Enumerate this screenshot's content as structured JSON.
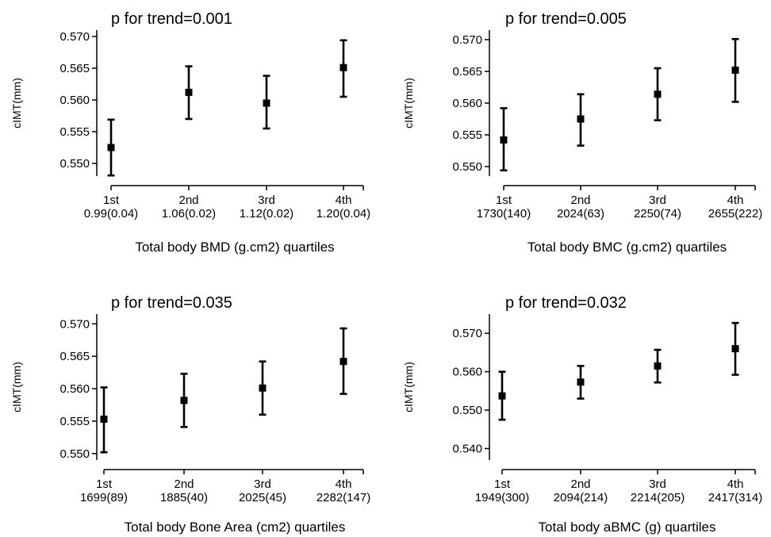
{
  "chart_data": [
    {
      "type": "scatter",
      "title": "p for trend=0.001",
      "ylabel": "cIMT(mm)",
      "xlabel": "Total body BMD (g.cm2) quartiles",
      "categories": [
        "1st",
        "2nd",
        "3rd",
        "4th"
      ],
      "category_sublabels": [
        "0.99(0.04)",
        "1.06(0.02)",
        "1.12(0.02)",
        "1.20(0.04)"
      ],
      "ylim": [
        0.548,
        0.571
      ],
      "yticks": [
        "0.550",
        "0.555",
        "0.560",
        "0.565",
        "0.570"
      ],
      "series": [
        {
          "values": [
            0.5525,
            0.5612,
            0.5595,
            0.5651
          ],
          "lower": [
            0.5481,
            0.557,
            0.5555,
            0.5605
          ],
          "upper": [
            0.5569,
            0.5653,
            0.5638,
            0.5694
          ]
        }
      ]
    },
    {
      "type": "scatter",
      "title": "p for trend=0.005",
      "ylabel": "cIMT(mm)",
      "xlabel": "Total body BMC (g.cm2) quartiles",
      "categories": [
        "1st",
        "2nd",
        "3rd",
        "4th"
      ],
      "category_sublabels": [
        "1730(140)",
        "2024(63)",
        "2250(74)",
        "2655(222)"
      ],
      "ylim": [
        0.5485,
        0.5715
      ],
      "yticks": [
        "0.550",
        "0.555",
        "0.560",
        "0.565",
        "0.570"
      ],
      "series": [
        {
          "values": [
            0.5542,
            0.5575,
            0.5614,
            0.5652
          ],
          "lower": [
            0.5494,
            0.5533,
            0.5573,
            0.5602
          ],
          "upper": [
            0.5592,
            0.5614,
            0.5655,
            0.5701
          ]
        }
      ]
    },
    {
      "type": "scatter",
      "title": "p for trend=0.035",
      "ylabel": "cIMT(mm)",
      "xlabel": "Total body Bone Area (cm2) quartiles",
      "categories": [
        "1st",
        "2nd",
        "3rd",
        "4th"
      ],
      "category_sublabels": [
        "1699(89)",
        "1885(40)",
        "2025(45)",
        "2282(147)"
      ],
      "ylim": [
        0.549,
        0.5715
      ],
      "yticks": [
        "0.550",
        "0.555",
        "0.560",
        "0.565",
        "0.570"
      ],
      "series": [
        {
          "values": [
            0.5553,
            0.5582,
            0.5601,
            0.5642
          ],
          "lower": [
            0.5502,
            0.5541,
            0.556,
            0.5592
          ],
          "upper": [
            0.5602,
            0.5623,
            0.5642,
            0.5693
          ]
        }
      ]
    },
    {
      "type": "scatter",
      "title": "p for trend=0.032",
      "ylabel": "cIMT(mm)",
      "xlabel": "Total body aBMC (g) quartiles",
      "categories": [
        "1st",
        "2nd",
        "3rd",
        "4th"
      ],
      "category_sublabels": [
        "1949(300)",
        "2094(214)",
        "2214(205)",
        "2417(314)"
      ],
      "ylim": [
        0.537,
        0.575
      ],
      "yticks": [
        "0.540",
        "0.550",
        "0.560",
        "0.570"
      ],
      "series": [
        {
          "values": [
            0.5537,
            0.5573,
            0.5615,
            0.566
          ],
          "lower": [
            0.5475,
            0.553,
            0.5572,
            0.5592
          ],
          "upper": [
            0.56,
            0.5615,
            0.5657,
            0.5727
          ]
        }
      ]
    }
  ]
}
